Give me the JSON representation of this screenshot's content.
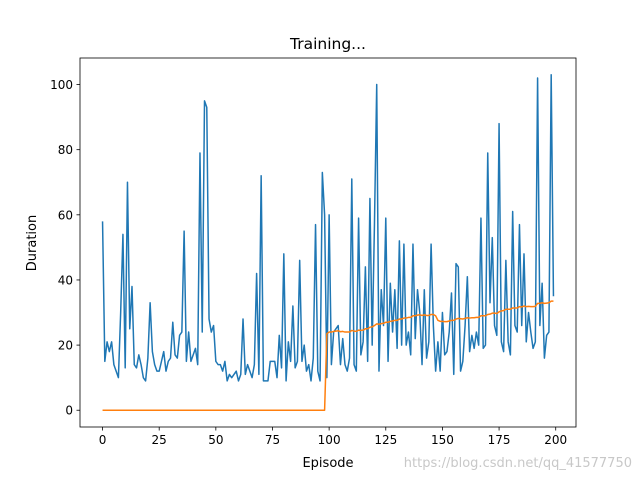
{
  "chart_data": {
    "type": "line",
    "title": "Training...",
    "x_label": "Episode",
    "y_label": "Duration",
    "watermark": "https://blog.csdn.net/qq_41577750",
    "x": [
      0,
      1,
      2,
      3,
      4,
      5,
      6,
      7,
      8,
      9,
      10,
      11,
      12,
      13,
      14,
      15,
      16,
      17,
      18,
      19,
      20,
      21,
      22,
      23,
      24,
      25,
      26,
      27,
      28,
      29,
      30,
      31,
      32,
      33,
      34,
      35,
      36,
      37,
      38,
      39,
      40,
      41,
      42,
      43,
      44,
      45,
      46,
      47,
      48,
      49,
      50,
      51,
      52,
      53,
      54,
      55,
      56,
      57,
      58,
      59,
      60,
      61,
      62,
      63,
      64,
      65,
      66,
      67,
      68,
      69,
      70,
      71,
      72,
      73,
      74,
      75,
      76,
      77,
      78,
      79,
      80,
      81,
      82,
      83,
      84,
      85,
      86,
      87,
      88,
      89,
      90,
      91,
      92,
      93,
      94,
      95,
      96,
      97,
      98,
      99,
      100,
      101,
      102,
      103,
      104,
      105,
      106,
      107,
      108,
      109,
      110,
      111,
      112,
      113,
      114,
      115,
      116,
      117,
      118,
      119,
      120,
      121,
      122,
      123,
      124,
      125,
      126,
      127,
      128,
      129,
      130,
      131,
      132,
      133,
      134,
      135,
      136,
      137,
      138,
      139,
      140,
      141,
      142,
      143,
      144,
      145,
      146,
      147,
      148,
      149,
      150,
      151,
      152,
      153,
      154,
      155,
      156,
      157,
      158,
      159,
      160,
      161,
      162,
      163,
      164,
      165,
      166,
      167,
      168,
      169,
      170,
      171,
      172,
      173,
      174,
      175,
      176,
      177,
      178,
      179,
      180,
      181,
      182,
      183,
      184,
      185,
      186,
      187,
      188,
      189,
      190,
      191,
      192,
      193,
      194,
      195,
      196,
      197,
      198,
      199
    ],
    "series": [
      {
        "color": "#1f77b4",
        "values": [
          58,
          15,
          21,
          18,
          21,
          14,
          12,
          10,
          30,
          54,
          13,
          70,
          25,
          38,
          14,
          13,
          17,
          14,
          10,
          9,
          16,
          33,
          18,
          14,
          12,
          12,
          15,
          18,
          12,
          15,
          16,
          27,
          17,
          16,
          23,
          24,
          55,
          15,
          24,
          15,
          17,
          19,
          14,
          79,
          24,
          95,
          93,
          28,
          24,
          26,
          15,
          14,
          14,
          12,
          15,
          9,
          11,
          10,
          11,
          12,
          9,
          11,
          28,
          11,
          14,
          12,
          10,
          14,
          42,
          11,
          72,
          9,
          9,
          9,
          15,
          15,
          15,
          10,
          23,
          13,
          48,
          9,
          21,
          15,
          32,
          13,
          15,
          46,
          15,
          20,
          12,
          14,
          9,
          16,
          57,
          12,
          9,
          73,
          60,
          10,
          60,
          14,
          24,
          25,
          26,
          14,
          22,
          14,
          12,
          16,
          71,
          14,
          12,
          59,
          17,
          21,
          44,
          15,
          65,
          20,
          57,
          100,
          12,
          37,
          26,
          59,
          15,
          39,
          24,
          37,
          19,
          52,
          20,
          51,
          20,
          24,
          17,
          51,
          22,
          37,
          30,
          14,
          37,
          16,
          21,
          51,
          26,
          12,
          21,
          12,
          30,
          17,
          18,
          24,
          36,
          11,
          45,
          44,
          12,
          15,
          26,
          41,
          18,
          23,
          19,
          24,
          20,
          59,
          19,
          20,
          79,
          33,
          53,
          26,
          23,
          88,
          21,
          18,
          46,
          21,
          17,
          61,
          26,
          24,
          57,
          26,
          48,
          21,
          30,
          24,
          19,
          21,
          102,
          26,
          39,
          16,
          23,
          24,
          103,
          35
        ]
      },
      {
        "color": "#ff7f0e",
        "values": [
          0,
          0,
          0,
          0,
          0,
          0,
          0,
          0,
          0,
          0,
          0,
          0,
          0,
          0,
          0,
          0,
          0,
          0,
          0,
          0,
          0,
          0,
          0,
          0,
          0,
          0,
          0,
          0,
          0,
          0,
          0,
          0,
          0,
          0,
          0,
          0,
          0,
          0,
          0,
          0,
          0,
          0,
          0,
          0,
          0,
          0,
          0,
          0,
          0,
          0,
          0,
          0,
          0,
          0,
          0,
          0,
          0,
          0,
          0,
          0,
          0,
          0,
          0,
          0,
          0,
          0,
          0,
          0,
          0,
          0,
          0,
          0,
          0,
          0,
          0,
          0,
          0,
          0,
          0,
          0,
          0,
          0,
          0,
          0,
          0,
          0,
          0,
          0,
          0,
          0,
          0,
          0,
          0,
          0,
          0,
          0,
          0,
          0,
          0,
          23.5,
          24,
          24,
          24.2,
          24.3,
          24.4,
          24.1,
          24.2,
          24,
          24,
          24,
          24.5,
          24.3,
          24.2,
          24.6,
          24.5,
          24.6,
          25,
          25,
          25.5,
          25.6,
          26,
          26.5,
          26.4,
          26.6,
          26.7,
          27,
          27,
          27.3,
          27.4,
          27.6,
          27.6,
          28,
          28,
          28.3,
          28.3,
          28.5,
          28.5,
          29,
          29,
          29.2,
          29.3,
          29.1,
          29.3,
          29.1,
          29.1,
          29.4,
          29.4,
          29,
          27.6,
          27.3,
          27.3,
          27.2,
          27.2,
          27.4,
          27.6,
          27.6,
          28,
          28.2,
          28.1,
          28,
          28.2,
          28.4,
          28.3,
          28.4,
          28.4,
          28.5,
          28.5,
          29,
          29,
          29,
          29.4,
          29.5,
          29.8,
          29.8,
          29.7,
          30.2,
          30.5,
          30.6,
          31,
          31,
          31,
          31.4,
          31.4,
          31.4,
          31.8,
          31.7,
          32,
          31.8,
          31.9,
          31.8,
          31.8,
          31.9,
          32.8,
          32.8,
          33,
          32.8,
          32.9,
          33,
          33.5,
          33.5
        ]
      }
    ],
    "xlim": [
      -9.95,
      208.95
    ],
    "xticks": [
      0,
      25,
      50,
      75,
      100,
      125,
      150,
      175,
      200
    ],
    "ylim": [
      -5.15,
      108.15
    ],
    "yticks": [
      0,
      20,
      40,
      60,
      80,
      100
    ]
  }
}
